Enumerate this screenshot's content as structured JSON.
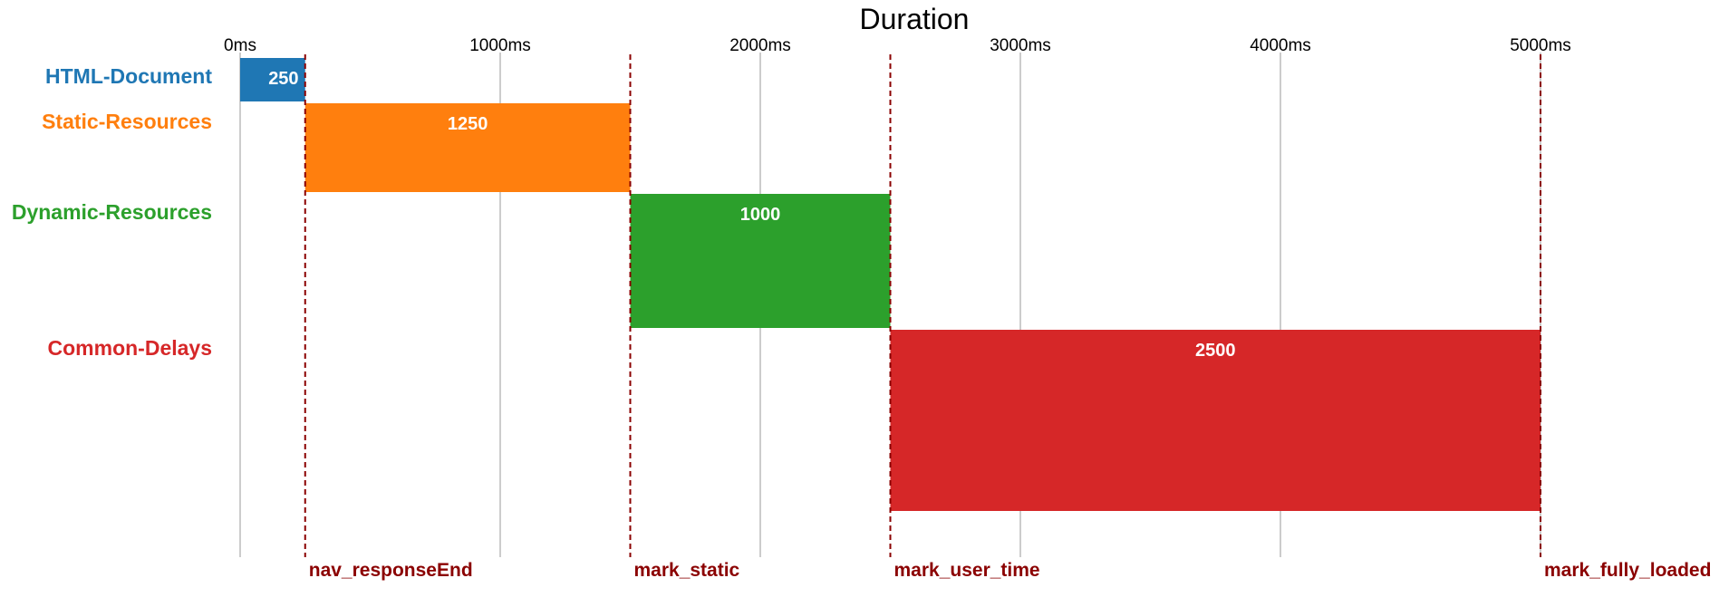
{
  "chart_data": {
    "type": "bar",
    "subtype": "waterfall-timeline",
    "title": "Duration",
    "xlim": [
      0,
      5000
    ],
    "x_ticks": [
      {
        "value": 0,
        "label": "0ms"
      },
      {
        "value": 1000,
        "label": "1000ms"
      },
      {
        "value": 2000,
        "label": "2000ms"
      },
      {
        "value": 3000,
        "label": "3000ms"
      },
      {
        "value": 4000,
        "label": "4000ms"
      },
      {
        "value": 5000,
        "label": "5000ms"
      }
    ],
    "grid": true,
    "categories": [
      "HTML-Document",
      "Static-Resources",
      "Dynamic-Resources",
      "Common-Delays"
    ],
    "series": [
      {
        "category": "HTML-Document",
        "start": 0,
        "value": 250,
        "label": "250",
        "color": "#1f77b4"
      },
      {
        "category": "Static-Resources",
        "start": 250,
        "value": 1250,
        "label": "1250",
        "color": "#ff7f0e"
      },
      {
        "category": "Dynamic-Resources",
        "start": 1500,
        "value": 1000,
        "label": "1000",
        "color": "#2ca02c"
      },
      {
        "category": "Common-Delays",
        "start": 2500,
        "value": 2500,
        "label": "2500",
        "color": "#d62728"
      }
    ],
    "marks": [
      {
        "name": "nav_responseEnd",
        "value": 250
      },
      {
        "name": "mark_static",
        "value": 1500
      },
      {
        "name": "mark_user_time",
        "value": 2500
      },
      {
        "name": "mark_fully_loaded",
        "value": 5000
      }
    ],
    "mark_color": "#8b0000",
    "grid_color": "#cccccc"
  }
}
